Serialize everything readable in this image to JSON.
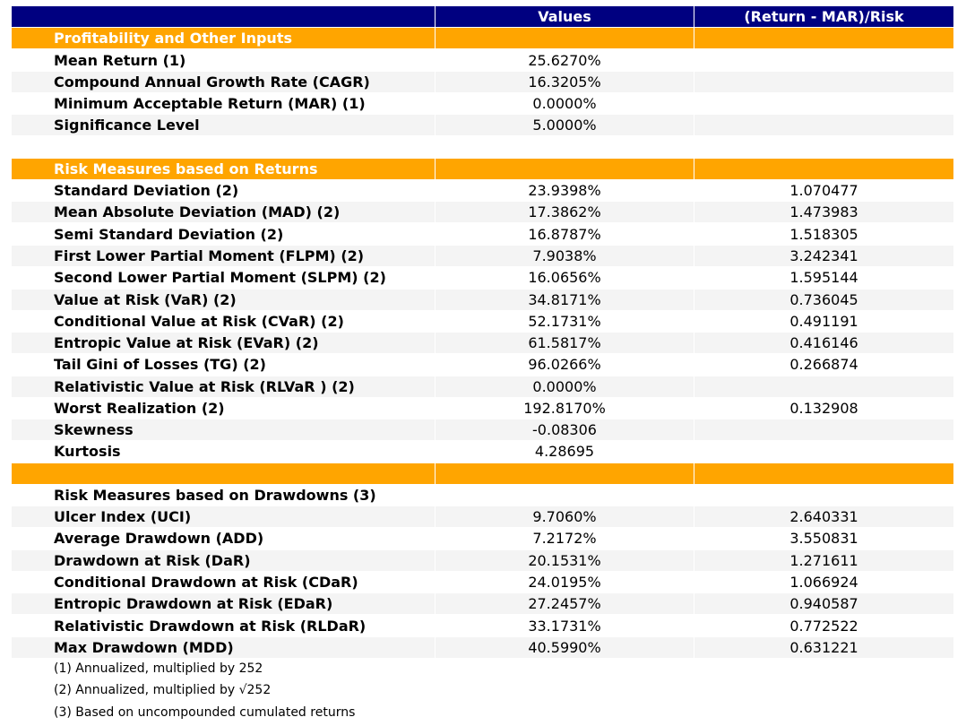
{
  "header": {
    "columns": [
      "Values",
      "(Return - MAR)/Risk"
    ]
  },
  "sections": [
    {
      "title": "Profitability and Other Inputs",
      "rows": [
        [
          "Mean Return (1)",
          "25.6270%"
        ],
        [
          "Compound Annual Growth Rate (CAGR)",
          "16.3205%"
        ],
        [
          "Minimum Acceptable Return (MAR) (1)",
          "0.0000%"
        ],
        [
          "Significance Level",
          "5.0000%"
        ]
      ]
    },
    {
      "title": "Risk Measures based on Returns",
      "rows": [
        [
          "Standard Deviation (2)",
          "23.9398%",
          "1.070477"
        ],
        [
          "Mean Absolute Deviation (MAD) (2)",
          "17.3862%",
          "1.473983"
        ],
        [
          "Semi Standard Deviation (2)",
          "16.8787%",
          "1.518305"
        ],
        [
          "First Lower Partial Moment (FLPM) (2)",
          "7.9038%",
          "3.242341"
        ],
        [
          "Second Lower Partial Moment (SLPM) (2)",
          "16.0656%",
          "1.595144"
        ],
        [
          "Value at Risk (VaR) (2)",
          "34.8171%",
          "0.736045"
        ],
        [
          "Conditional Value at Risk (CVaR) (2)",
          "52.1731%",
          "0.491191"
        ],
        [
          "Entropic Value at Risk (EVaR) (2)",
          "61.5817%",
          "0.416146"
        ],
        [
          "Tail Gini of Losses (TG) (2)",
          "96.0266%",
          "0.266874"
        ],
        [
          "Relativistic Value at Risk (RLVaR ) (2)",
          "0.0000%"
        ],
        [
          "Worst Realization (2)",
          "192.8170%",
          "0.132908"
        ],
        [
          "Skewness",
          "-0.08306"
        ],
        [
          "Kurtosis",
          "4.28695"
        ]
      ]
    },
    {
      "title": "Risk Measures based on Drawdowns (3)",
      "rows": [
        [
          "Ulcer Index (UCI)",
          "9.7060%",
          "2.640331"
        ],
        [
          "Average Drawdown (ADD)",
          "7.2172%",
          "3.550831"
        ],
        [
          "Drawdown at Risk (DaR)",
          "20.1531%",
          "1.271611"
        ],
        [
          "Conditional Drawdown at Risk (CDaR)",
          "24.0195%",
          "1.066924"
        ],
        [
          "Entropic Drawdown at Risk (EDaR)",
          "27.2457%",
          "0.940587"
        ],
        [
          "Relativistic Drawdown at Risk (RLDaR)",
          "33.1731%",
          "0.772522"
        ],
        [
          "Max Drawdown (MDD)",
          "40.5990%",
          "0.631221"
        ]
      ]
    }
  ],
  "notes": [
    "(1) Annualized, multiplied by 252",
    "(2) Annualized, multiplied by √252",
    "(3) Based on uncompounded cumulated returns"
  ]
}
